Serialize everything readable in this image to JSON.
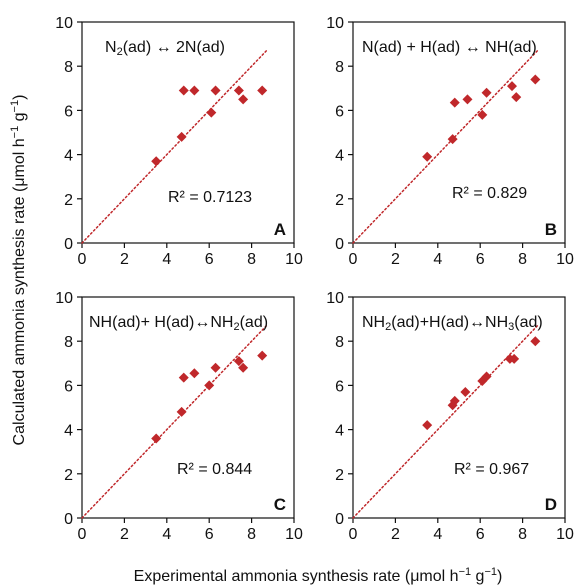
{
  "colors": {
    "marker": "#c0282b",
    "fit_line": "#c0282b",
    "axis": "#111111"
  },
  "figure": {
    "xlabel_prefix": "Experimental ammonia synthesis rate (μmol h",
    "xlabel_sup1": "−1",
    "xlabel_mid": " g",
    "xlabel_sup2": "−1",
    "xlabel_suffix": ")",
    "ylabel_prefix": "Calculated ammonia synthesis rate (μmol h",
    "ylabel_sup1": "−1",
    "ylabel_mid": " g",
    "ylabel_sup2": "−1",
    "ylabel_suffix": ")"
  },
  "chart_data": [
    {
      "type": "scatter",
      "letter": "A",
      "equation": [
        {
          "t": "N"
        },
        {
          "t": "2",
          "sub": true
        },
        {
          "t": "(ad)  ↔  2N(ad)"
        }
      ],
      "r2_label": "R² = 0.7123",
      "xlim": [
        0,
        10
      ],
      "ylim": [
        0,
        10
      ],
      "xticks": [
        "0",
        "2",
        "4",
        "6",
        "8",
        "10"
      ],
      "yticks": [
        "0",
        "2",
        "4",
        "6",
        "8",
        "10"
      ],
      "fit_line": [
        [
          0,
          0
        ],
        [
          8.7,
          8.7
        ]
      ],
      "points": [
        [
          3.5,
          3.7
        ],
        [
          4.7,
          4.8
        ],
        [
          4.8,
          6.9
        ],
        [
          5.3,
          6.9
        ],
        [
          6.1,
          5.9
        ],
        [
          6.3,
          6.9
        ],
        [
          7.4,
          6.9
        ],
        [
          7.6,
          6.5
        ],
        [
          8.5,
          6.9
        ]
      ]
    },
    {
      "type": "scatter",
      "letter": "B",
      "equation": [
        {
          "t": "N(ad) + H(ad) ↔ NH(ad)"
        }
      ],
      "r2_label": "R² = 0.829",
      "xlim": [
        0,
        10
      ],
      "ylim": [
        0,
        10
      ],
      "xticks": [
        "0",
        "2",
        "4",
        "6",
        "8",
        "10"
      ],
      "yticks": [
        "0",
        "2",
        "4",
        "6",
        "8",
        "10"
      ],
      "fit_line": [
        [
          0,
          0
        ],
        [
          8.7,
          8.7
        ]
      ],
      "points": [
        [
          3.5,
          3.9
        ],
        [
          4.7,
          4.7
        ],
        [
          4.8,
          6.35
        ],
        [
          5.4,
          6.5
        ],
        [
          6.1,
          5.8
        ],
        [
          6.3,
          6.8
        ],
        [
          7.5,
          7.1
        ],
        [
          7.7,
          6.6
        ],
        [
          8.6,
          7.4
        ]
      ]
    },
    {
      "type": "scatter",
      "letter": "C",
      "equation": [
        {
          "t": "NH(ad)+ H(ad)↔NH"
        },
        {
          "t": "2",
          "sub": true
        },
        {
          "t": "(ad)"
        }
      ],
      "r2_label": "R² = 0.844",
      "xlim": [
        0,
        10
      ],
      "ylim": [
        0,
        10
      ],
      "xticks": [
        "0",
        "2",
        "4",
        "6",
        "8",
        "10"
      ],
      "yticks": [
        "0",
        "2",
        "4",
        "6",
        "8",
        "10"
      ],
      "fit_line": [
        [
          0,
          0
        ],
        [
          8.7,
          8.7
        ]
      ],
      "points": [
        [
          3.5,
          3.6
        ],
        [
          4.7,
          4.8
        ],
        [
          4.8,
          6.35
        ],
        [
          5.3,
          6.55
        ],
        [
          6.0,
          6.0
        ],
        [
          6.3,
          6.8
        ],
        [
          7.4,
          7.1
        ],
        [
          7.6,
          6.8
        ],
        [
          8.5,
          7.35
        ]
      ]
    },
    {
      "type": "scatter",
      "letter": "D",
      "equation": [
        {
          "t": "NH"
        },
        {
          "t": "2",
          "sub": true
        },
        {
          "t": "(ad)+H(ad)↔NH"
        },
        {
          "t": "3",
          "sub": true
        },
        {
          "t": "(ad)"
        }
      ],
      "r2_label": "R² = 0.967",
      "xlim": [
        0,
        10
      ],
      "ylim": [
        0,
        10
      ],
      "xticks": [
        "0",
        "2",
        "4",
        "6",
        "8",
        "10"
      ],
      "yticks": [
        "0",
        "2",
        "4",
        "6",
        "8",
        "10"
      ],
      "fit_line": [
        [
          0,
          0
        ],
        [
          8.7,
          8.7
        ]
      ],
      "points": [
        [
          3.5,
          4.2
        ],
        [
          4.7,
          5.1
        ],
        [
          4.8,
          5.3
        ],
        [
          5.3,
          5.7
        ],
        [
          6.1,
          6.2
        ],
        [
          6.3,
          6.4
        ],
        [
          7.4,
          7.2
        ],
        [
          7.6,
          7.2
        ],
        [
          8.6,
          8.0
        ]
      ]
    }
  ]
}
